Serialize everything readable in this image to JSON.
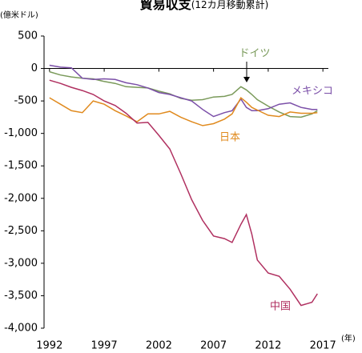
{
  "chart_data": {
    "type": "line",
    "title": "貿易収支",
    "subtitle": "(12カ月移動累計)",
    "y_label": "(億米ドル)",
    "x_label": "(年)",
    "x": [
      1992,
      1993,
      1994,
      1995,
      1996,
      1997,
      1998,
      1999,
      2000,
      2001,
      2002,
      2003,
      2004,
      2005,
      2006,
      2007,
      2008,
      2008.7,
      2009.5,
      2010,
      2010.5,
      2011,
      2012,
      2013,
      2014,
      2015,
      2016,
      2016.5
    ],
    "series": [
      {
        "name": "ドイツ",
        "color": "#7a9a5a",
        "values": [
          -50,
          -100,
          -130,
          -150,
          -160,
          -200,
          -230,
          -280,
          -290,
          -300,
          -350,
          -390,
          -460,
          -490,
          -480,
          -440,
          -430,
          -400,
          -280,
          -330,
          -400,
          -480,
          -580,
          -670,
          -740,
          -750,
          -700,
          -650
        ]
      },
      {
        "name": "メキシコ",
        "color": "#7b4fa8",
        "values": [
          50,
          20,
          10,
          -150,
          -170,
          -160,
          -170,
          -220,
          -250,
          -300,
          -370,
          -400,
          -450,
          -500,
          -630,
          -740,
          -680,
          -650,
          -470,
          -600,
          -650,
          -650,
          -620,
          -550,
          -530,
          -600,
          -630,
          -630
        ]
      },
      {
        "name": "日本",
        "color": "#e08a1e",
        "values": [
          -450,
          -550,
          -650,
          -680,
          -500,
          -550,
          -650,
          -730,
          -820,
          -700,
          -700,
          -660,
          -750,
          -820,
          -880,
          -850,
          -780,
          -700,
          -450,
          -520,
          -600,
          -640,
          -720,
          -740,
          -670,
          -690,
          -690,
          -680
        ]
      },
      {
        "name": "中国",
        "color": "#b03060",
        "values": [
          -180,
          -230,
          -290,
          -340,
          -400,
          -500,
          -570,
          -690,
          -840,
          -830,
          -1030,
          -1240,
          -1620,
          -2020,
          -2340,
          -2580,
          -2620,
          -2680,
          -2400,
          -2250,
          -2550,
          -2950,
          -3150,
          -3200,
          -3400,
          -3650,
          -3600,
          -3470
        ]
      }
    ],
    "xlim": [
      1991.5,
      2017.5
    ],
    "xticks": [
      1992,
      1997,
      2002,
      2007,
      2012,
      2017
    ],
    "ylim": [
      -4000,
      500
    ],
    "yticks": [
      500,
      0,
      -500,
      {
        "value": -1000,
        "label": "-1,000"
      },
      {
        "value": -1500,
        "label": "-1,500"
      },
      {
        "value": -2000,
        "label": "-2,000"
      },
      {
        "value": -2500,
        "label": "-2,500"
      },
      {
        "value": -3000,
        "label": "-3,000"
      },
      {
        "value": -3500,
        "label": "-3,500"
      },
      {
        "value": -4000,
        "label": "-4,000"
      }
    ]
  }
}
